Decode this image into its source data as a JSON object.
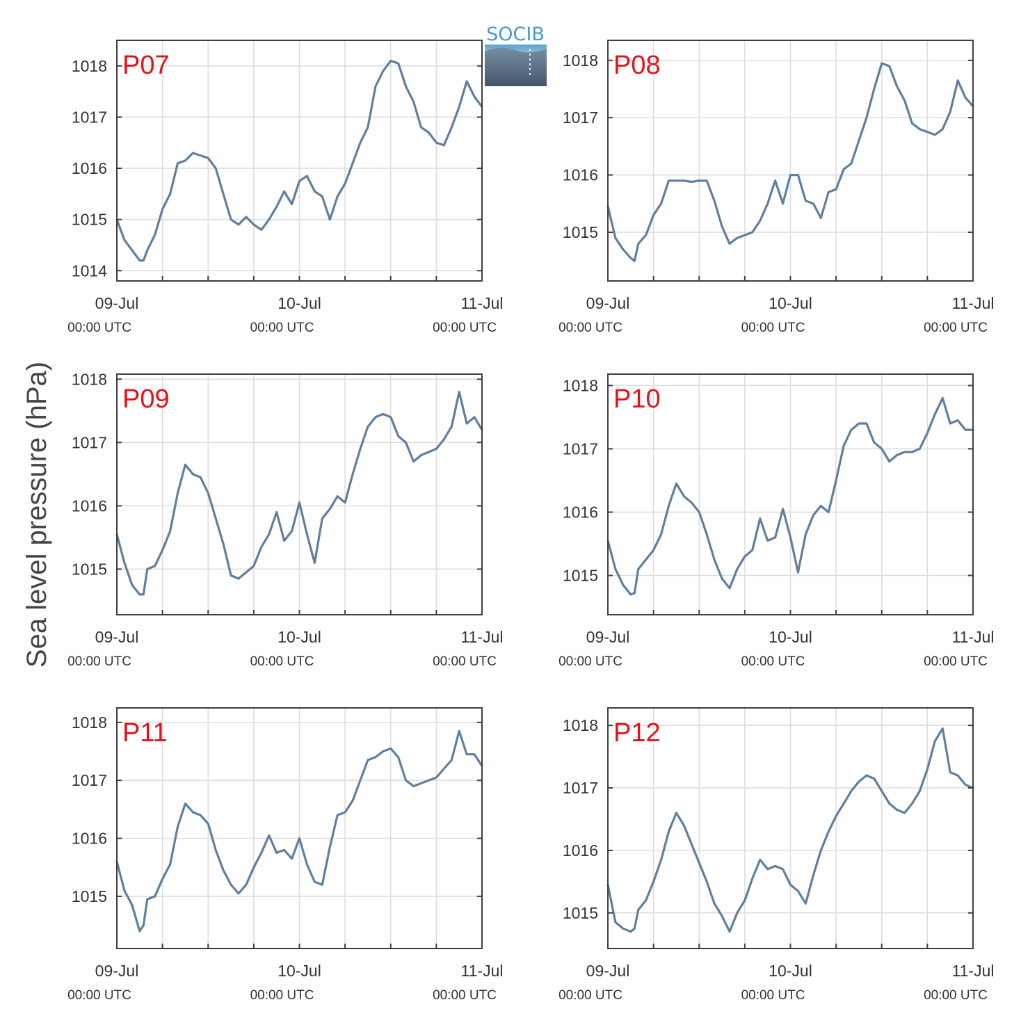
{
  "figure": {
    "ylabel": "Sea level pressure (hPa)",
    "logo_text": "SOCIB",
    "line_color": "#5f7f9f",
    "label_color": "#e8101b"
  },
  "chart_data": [
    {
      "type": "line",
      "panel_label": "P07",
      "ylim": [
        1013.8,
        1018.5
      ],
      "yticks": [
        1014,
        1015,
        1016,
        1017,
        1018
      ],
      "xlim": [
        0,
        48
      ],
      "xticks": [
        0,
        24,
        48
      ],
      "xtick_labels": [
        "09-Jul",
        "10-Jul",
        "11-Jul"
      ],
      "xtick_sublabels": [
        "00:00 UTC",
        "00:00 UTC",
        "00:00 UTC"
      ],
      "grid": true,
      "x": [
        0,
        1,
        2,
        3,
        3.5,
        4,
        5,
        6,
        7,
        8,
        9,
        10,
        11,
        12,
        13,
        14,
        15,
        16,
        17,
        18,
        19,
        20,
        21,
        22,
        23,
        24,
        25,
        26,
        27,
        28,
        29,
        30,
        31,
        32,
        33,
        34,
        35,
        36,
        37,
        38,
        39,
        40,
        41,
        42,
        43,
        44,
        45,
        46,
        47,
        48
      ],
      "values": [
        1015.0,
        1014.6,
        1014.4,
        1014.2,
        1014.2,
        1014.4,
        1014.7,
        1015.2,
        1015.5,
        1016.1,
        1016.15,
        1016.3,
        1016.25,
        1016.2,
        1016.0,
        1015.5,
        1015.0,
        1014.9,
        1015.05,
        1014.9,
        1014.8,
        1015.0,
        1015.25,
        1015.55,
        1015.3,
        1015.75,
        1015.85,
        1015.55,
        1015.45,
        1015.0,
        1015.45,
        1015.7,
        1016.1,
        1016.5,
        1016.8,
        1017.6,
        1017.9,
        1018.1,
        1018.05,
        1017.6,
        1017.3,
        1016.8,
        1016.7,
        1016.5,
        1016.45,
        1016.8,
        1017.2,
        1017.7,
        1017.4,
        1017.2
      ]
    },
    {
      "type": "line",
      "panel_label": "P08",
      "ylim": [
        1014.15,
        1018.35
      ],
      "yticks": [
        1015,
        1016,
        1017,
        1018
      ],
      "xlim": [
        0,
        48
      ],
      "xticks": [
        0,
        24,
        48
      ],
      "xtick_labels": [
        "09-Jul",
        "10-Jul",
        "11-Jul"
      ],
      "xtick_sublabels": [
        "00:00 UTC",
        "00:00 UTC",
        "00:00 UTC"
      ],
      "grid": true,
      "x": [
        0,
        1,
        2,
        3,
        3.5,
        4,
        5,
        6,
        7,
        8,
        9,
        10,
        11,
        12,
        13,
        14,
        15,
        16,
        17,
        18,
        19,
        20,
        21,
        22,
        23,
        24,
        25,
        26,
        27,
        28,
        29,
        30,
        31,
        32,
        33,
        34,
        35,
        36,
        37,
        38,
        39,
        40,
        41,
        42,
        43,
        44,
        45,
        46,
        47,
        48
      ],
      "values": [
        1015.45,
        1014.9,
        1014.7,
        1014.55,
        1014.5,
        1014.8,
        1014.95,
        1015.3,
        1015.5,
        1015.9,
        1015.9,
        1015.9,
        1015.88,
        1015.9,
        1015.9,
        1015.55,
        1015.1,
        1014.8,
        1014.9,
        1014.95,
        1015.0,
        1015.2,
        1015.5,
        1015.9,
        1015.5,
        1016.0,
        1016.0,
        1015.55,
        1015.5,
        1015.25,
        1015.7,
        1015.75,
        1016.1,
        1016.2,
        1016.6,
        1017.0,
        1017.5,
        1017.95,
        1017.9,
        1017.55,
        1017.3,
        1016.9,
        1016.8,
        1016.75,
        1016.7,
        1016.8,
        1017.1,
        1017.65,
        1017.35,
        1017.2
      ]
    },
    {
      "type": "line",
      "panel_label": "P09",
      "ylim": [
        1014.28,
        1018.08
      ],
      "yticks": [
        1015,
        1016,
        1017,
        1018
      ],
      "xlim": [
        0,
        48
      ],
      "xticks": [
        0,
        24,
        48
      ],
      "xtick_labels": [
        "09-Jul",
        "10-Jul",
        "11-Jul"
      ],
      "xtick_sublabels": [
        "00:00 UTC",
        "00:00 UTC",
        "00:00 UTC"
      ],
      "grid": true,
      "x": [
        0,
        1,
        2,
        3,
        3.5,
        4,
        5,
        6,
        7,
        8,
        9,
        10,
        11,
        12,
        13,
        14,
        15,
        16,
        17,
        18,
        19,
        20,
        21,
        22,
        23,
        24,
        25,
        26,
        27,
        28,
        29,
        30,
        31,
        32,
        33,
        34,
        35,
        36,
        37,
        38,
        39,
        40,
        41,
        42,
        43,
        44,
        45,
        46,
        47,
        48
      ],
      "values": [
        1015.55,
        1015.1,
        1014.75,
        1014.6,
        1014.6,
        1015.0,
        1015.05,
        1015.3,
        1015.6,
        1016.2,
        1016.65,
        1016.5,
        1016.45,
        1016.2,
        1015.8,
        1015.4,
        1014.9,
        1014.85,
        1014.95,
        1015.05,
        1015.35,
        1015.55,
        1015.9,
        1015.45,
        1015.6,
        1016.05,
        1015.55,
        1015.1,
        1015.8,
        1015.95,
        1016.15,
        1016.05,
        1016.5,
        1016.9,
        1017.25,
        1017.4,
        1017.45,
        1017.4,
        1017.1,
        1017.0,
        1016.7,
        1016.8,
        1016.85,
        1016.9,
        1017.05,
        1017.25,
        1017.8,
        1017.3,
        1017.4,
        1017.2
      ]
    },
    {
      "type": "line",
      "panel_label": "P10",
      "ylim": [
        1014.38,
        1018.18
      ],
      "yticks": [
        1015,
        1016,
        1017,
        1018
      ],
      "xlim": [
        0,
        48
      ],
      "xticks": [
        0,
        24,
        48
      ],
      "xtick_labels": [
        "09-Jul",
        "10-Jul",
        "11-Jul"
      ],
      "xtick_sublabels": [
        "00:00 UTC",
        "00:00 UTC",
        "00:00 UTC"
      ],
      "grid": true,
      "x": [
        0,
        1,
        2,
        3,
        3.5,
        4,
        5,
        6,
        7,
        8,
        9,
        10,
        11,
        12,
        13,
        14,
        15,
        16,
        17,
        18,
        19,
        20,
        21,
        22,
        23,
        24,
        25,
        26,
        27,
        28,
        29,
        30,
        31,
        32,
        33,
        34,
        35,
        36,
        37,
        38,
        39,
        40,
        41,
        42,
        43,
        44,
        45,
        46,
        47,
        48
      ],
      "values": [
        1015.55,
        1015.1,
        1014.85,
        1014.7,
        1014.72,
        1015.1,
        1015.25,
        1015.4,
        1015.65,
        1016.1,
        1016.45,
        1016.25,
        1016.15,
        1016.0,
        1015.65,
        1015.25,
        1014.95,
        1014.8,
        1015.1,
        1015.3,
        1015.4,
        1015.9,
        1015.55,
        1015.6,
        1016.05,
        1015.6,
        1015.05,
        1015.65,
        1015.95,
        1016.1,
        1016.0,
        1016.5,
        1017.05,
        1017.3,
        1017.4,
        1017.4,
        1017.1,
        1017.0,
        1016.8,
        1016.9,
        1016.95,
        1016.95,
        1017.0,
        1017.25,
        1017.55,
        1017.8,
        1017.4,
        1017.45,
        1017.3,
        1017.3
      ]
    },
    {
      "type": "line",
      "panel_label": "P11",
      "ylim": [
        1014.1,
        1018.25
      ],
      "yticks": [
        1015,
        1016,
        1017,
        1018
      ],
      "xlim": [
        0,
        48
      ],
      "xticks": [
        0,
        24,
        48
      ],
      "xtick_labels": [
        "09-Jul",
        "10-Jul",
        "11-Jul"
      ],
      "xtick_sublabels": [
        "00:00 UTC",
        "00:00 UTC",
        "00:00 UTC"
      ],
      "grid": true,
      "x": [
        0,
        1,
        2,
        3,
        3.5,
        4,
        5,
        6,
        7,
        8,
        9,
        10,
        11,
        12,
        13,
        14,
        15,
        16,
        17,
        18,
        19,
        20,
        21,
        22,
        23,
        24,
        25,
        26,
        27,
        28,
        29,
        30,
        31,
        32,
        33,
        34,
        35,
        36,
        37,
        38,
        39,
        40,
        41,
        42,
        43,
        44,
        45,
        46,
        47,
        48
      ],
      "values": [
        1015.6,
        1015.1,
        1014.85,
        1014.4,
        1014.5,
        1014.95,
        1015.0,
        1015.3,
        1015.55,
        1016.2,
        1016.6,
        1016.45,
        1016.4,
        1016.25,
        1015.8,
        1015.45,
        1015.2,
        1015.05,
        1015.2,
        1015.5,
        1015.75,
        1016.05,
        1015.75,
        1015.8,
        1015.65,
        1016.0,
        1015.55,
        1015.25,
        1015.2,
        1015.85,
        1016.4,
        1016.45,
        1016.65,
        1017.0,
        1017.35,
        1017.4,
        1017.5,
        1017.55,
        1017.4,
        1017.0,
        1016.9,
        1016.95,
        1017.0,
        1017.05,
        1017.2,
        1017.35,
        1017.85,
        1017.45,
        1017.45,
        1017.25
      ]
    },
    {
      "type": "line",
      "panel_label": "P12",
      "ylim": [
        1014.43,
        1018.28
      ],
      "yticks": [
        1015,
        1016,
        1017,
        1018
      ],
      "xlim": [
        0,
        48
      ],
      "xticks": [
        0,
        24,
        48
      ],
      "xtick_labels": [
        "09-Jul",
        "10-Jul",
        "11-Jul"
      ],
      "xtick_sublabels": [
        "00:00 UTC",
        "00:00 UTC",
        "00:00 UTC"
      ],
      "grid": true,
      "x": [
        0,
        1,
        2,
        3,
        3.5,
        4,
        5,
        6,
        7,
        8,
        9,
        10,
        11,
        12,
        13,
        14,
        15,
        16,
        17,
        18,
        19,
        20,
        21,
        22,
        23,
        24,
        25,
        26,
        27,
        28,
        29,
        30,
        31,
        32,
        33,
        34,
        35,
        36,
        37,
        38,
        39,
        40,
        41,
        42,
        43,
        44,
        45,
        46,
        47,
        48
      ],
      "values": [
        1015.45,
        1014.85,
        1014.75,
        1014.7,
        1014.75,
        1015.05,
        1015.2,
        1015.5,
        1015.85,
        1016.3,
        1016.6,
        1016.4,
        1016.1,
        1015.8,
        1015.5,
        1015.15,
        1014.95,
        1014.7,
        1015.0,
        1015.2,
        1015.55,
        1015.85,
        1015.7,
        1015.75,
        1015.7,
        1015.45,
        1015.35,
        1015.15,
        1015.6,
        1016.0,
        1016.3,
        1016.55,
        1016.75,
        1016.95,
        1017.1,
        1017.2,
        1017.15,
        1016.95,
        1016.75,
        1016.65,
        1016.6,
        1016.75,
        1016.95,
        1017.3,
        1017.75,
        1017.95,
        1017.25,
        1017.2,
        1017.05,
        1017.0
      ]
    }
  ]
}
